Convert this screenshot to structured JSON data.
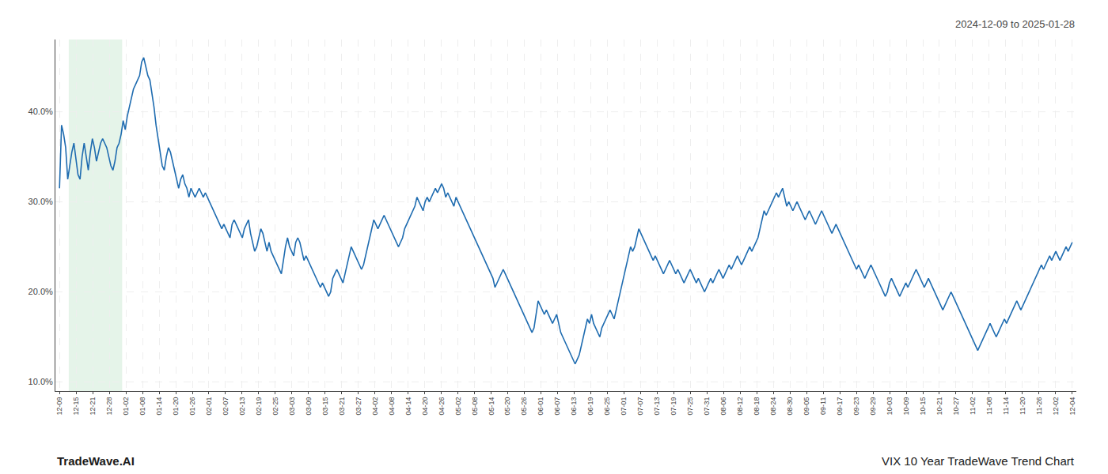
{
  "chart_data": {
    "type": "line",
    "title": "VIX 10 Year TradeWave Trend Chart",
    "subtitle": "2024-12-09 to 2025-01-28",
    "annotations": [
      "TradeWave.AI"
    ],
    "color": "#1f6cb0",
    "grid": true,
    "highlight": {
      "start": 4.5,
      "end": 30.5,
      "color": "#d4edda"
    },
    "xlim": [
      -2,
      495
    ],
    "xticks": [
      {
        "value": 0,
        "label": "12-09"
      },
      {
        "value": 8.082,
        "label": "12-15"
      },
      {
        "value": 16.1639,
        "label": "12-21"
      },
      {
        "value": 24.2459,
        "label": "12-28"
      },
      {
        "value": 32.3279,
        "label": "01-02"
      },
      {
        "value": 40.4098,
        "label": "01-08"
      },
      {
        "value": 48.4918,
        "label": "01-14"
      },
      {
        "value": 56.5738,
        "label": "01-20"
      },
      {
        "value": 64.6557,
        "label": "01-26"
      },
      {
        "value": 72.7377,
        "label": "02-01"
      },
      {
        "value": 80.8197,
        "label": "02-07"
      },
      {
        "value": 88.9016,
        "label": "02-13"
      },
      {
        "value": 96.9836,
        "label": "02-19"
      },
      {
        "value": 105.0656,
        "label": "02-25"
      },
      {
        "value": 113.1475,
        "label": "03-03"
      },
      {
        "value": 121.2295,
        "label": "03-09"
      },
      {
        "value": 129.3115,
        "label": "03-15"
      },
      {
        "value": 137.3934,
        "label": "03-21"
      },
      {
        "value": 145.4754,
        "label": "03-27"
      },
      {
        "value": 153.5574,
        "label": "04-02"
      },
      {
        "value": 161.6393,
        "label": "04-08"
      },
      {
        "value": 169.7213,
        "label": "04-14"
      },
      {
        "value": 177.8033,
        "label": "04-20"
      },
      {
        "value": 185.8852,
        "label": "04-26"
      },
      {
        "value": 193.9672,
        "label": "05-02"
      },
      {
        "value": 202.0492,
        "label": "05-08"
      },
      {
        "value": 210.1311,
        "label": "05-14"
      },
      {
        "value": 218.2131,
        "label": "05-20"
      },
      {
        "value": 226.2951,
        "label": "05-26"
      },
      {
        "value": 234.377,
        "label": "06-01"
      },
      {
        "value": 242.459,
        "label": "06-07"
      },
      {
        "value": 250.541,
        "label": "06-13"
      },
      {
        "value": 258.623,
        "label": "06-19"
      },
      {
        "value": 266.7049,
        "label": "06-25"
      },
      {
        "value": 274.7869,
        "label": "07-01"
      },
      {
        "value": 282.8689,
        "label": "07-07"
      },
      {
        "value": 290.9508,
        "label": "07-13"
      },
      {
        "value": 299.0328,
        "label": "07-19"
      },
      {
        "value": 307.1148,
        "label": "07-25"
      },
      {
        "value": 315.1967,
        "label": "07-31"
      },
      {
        "value": 323.2787,
        "label": "08-06"
      },
      {
        "value": 331.3607,
        "label": "08-12"
      },
      {
        "value": 339.4426,
        "label": "08-18"
      },
      {
        "value": 347.5246,
        "label": "08-24"
      },
      {
        "value": 355.6066,
        "label": "08-30"
      },
      {
        "value": 363.6885,
        "label": "09-05"
      },
      {
        "value": 371.7705,
        "label": "09-11"
      },
      {
        "value": 379.8525,
        "label": "09-17"
      },
      {
        "value": 387.9344,
        "label": "09-23"
      },
      {
        "value": 396.0164,
        "label": "09-29"
      },
      {
        "value": 404.0984,
        "label": "10-03"
      },
      {
        "value": 412.1803,
        "label": "10-09"
      },
      {
        "value": 420.2623,
        "label": "10-15"
      },
      {
        "value": 428.3443,
        "label": "10-21"
      },
      {
        "value": 436.4262,
        "label": "10-27"
      },
      {
        "value": 444.5082,
        "label": "11-02"
      },
      {
        "value": 452.5902,
        "label": "11-08"
      },
      {
        "value": 460.6721,
        "label": "11-14"
      },
      {
        "value": 468.7541,
        "label": "11-20"
      },
      {
        "value": 476.8361,
        "label": "11-26"
      },
      {
        "value": 484.918,
        "label": "12-02"
      },
      {
        "value": 493,
        "label": "12-04"
      }
    ],
    "ylim": [
      9.0,
      48.0
    ],
    "yticks": [
      {
        "value": 10.0,
        "label": "10.0%"
      },
      {
        "value": 20.0,
        "label": "20.0%"
      },
      {
        "value": 30.0,
        "label": "30.0%"
      },
      {
        "value": 40.0,
        "label": "40.0%"
      }
    ],
    "values": [
      31.5,
      38.5,
      37.5,
      36.0,
      32.5,
      34.0,
      35.5,
      36.5,
      34.5,
      33.0,
      32.5,
      35.0,
      36.5,
      35.0,
      33.5,
      35.5,
      37.0,
      36.0,
      34.5,
      35.5,
      36.5,
      37.0,
      36.5,
      36.0,
      35.0,
      34.0,
      33.5,
      34.5,
      36.0,
      36.5,
      37.5,
      39.0,
      38.0,
      39.5,
      40.5,
      41.5,
      42.5,
      43.0,
      43.5,
      44.0,
      45.5,
      46.0,
      45.0,
      44.0,
      43.5,
      42.0,
      40.5,
      38.5,
      37.0,
      35.5,
      34.0,
      33.5,
      35.0,
      36.0,
      35.5,
      34.5,
      33.5,
      32.5,
      31.5,
      32.5,
      33.0,
      32.0,
      31.5,
      30.5,
      31.5,
      31.0,
      30.5,
      31.0,
      31.5,
      31.0,
      30.5,
      31.0,
      30.5,
      30.0,
      29.5,
      29.0,
      28.5,
      28.0,
      27.5,
      27.0,
      27.5,
      27.0,
      26.5,
      26.0,
      27.5,
      28.0,
      27.5,
      27.0,
      26.5,
      26.0,
      27.0,
      27.5,
      28.0,
      26.5,
      25.5,
      24.5,
      25.0,
      26.0,
      27.0,
      26.5,
      25.5,
      24.5,
      25.5,
      24.5,
      24.0,
      23.5,
      23.0,
      22.5,
      22.0,
      23.5,
      25.0,
      26.0,
      25.0,
      24.5,
      24.0,
      25.5,
      26.0,
      25.5,
      24.5,
      23.5,
      24.0,
      23.5,
      23.0,
      22.5,
      22.0,
      21.5,
      21.0,
      20.5,
      21.0,
      20.5,
      20.0,
      19.5,
      20.0,
      21.5,
      22.0,
      22.5,
      22.0,
      21.5,
      21.0,
      22.0,
      23.0,
      24.0,
      25.0,
      24.5,
      24.0,
      23.5,
      23.0,
      22.5,
      23.0,
      24.0,
      25.0,
      26.0,
      27.0,
      28.0,
      27.5,
      27.0,
      27.5,
      28.0,
      28.5,
      28.0,
      27.5,
      27.0,
      26.5,
      26.0,
      25.5,
      25.0,
      25.5,
      26.0,
      27.0,
      27.5,
      28.0,
      28.5,
      29.0,
      29.5,
      30.5,
      30.0,
      29.5,
      29.0,
      30.0,
      30.5,
      30.0,
      30.5,
      31.0,
      31.5,
      31.0,
      31.5,
      32.0,
      31.5,
      30.5,
      31.0,
      30.5,
      30.0,
      29.5,
      30.5,
      30.0,
      29.5,
      29.0,
      28.5,
      28.0,
      27.5,
      27.0,
      26.5,
      26.0,
      25.5,
      25.0,
      24.5,
      24.0,
      23.5,
      23.0,
      22.5,
      22.0,
      21.5,
      20.5,
      21.0,
      21.5,
      22.0,
      22.5,
      22.0,
      21.5,
      21.0,
      20.5,
      20.0,
      19.5,
      19.0,
      18.5,
      18.0,
      17.5,
      17.0,
      16.5,
      16.0,
      15.5,
      16.0,
      17.5,
      19.0,
      18.5,
      18.0,
      17.5,
      18.0,
      17.5,
      17.0,
      16.5,
      17.0,
      17.5,
      16.5,
      15.5,
      15.0,
      14.5,
      14.0,
      13.5,
      13.0,
      12.5,
      12.0,
      12.5,
      13.0,
      14.0,
      15.0,
      16.0,
      17.0,
      16.5,
      17.5,
      16.5,
      16.0,
      15.5,
      15.0,
      16.0,
      16.5,
      17.0,
      17.5,
      18.0,
      17.5,
      17.0,
      18.0,
      19.0,
      20.0,
      21.0,
      22.0,
      23.0,
      24.0,
      25.0,
      24.5,
      25.0,
      26.0,
      27.0,
      26.5,
      26.0,
      25.5,
      25.0,
      24.5,
      24.0,
      23.5,
      24.0,
      23.5,
      23.0,
      22.5,
      22.0,
      22.5,
      23.0,
      23.5,
      23.0,
      22.5,
      22.0,
      22.5,
      22.0,
      21.5,
      21.0,
      21.5,
      22.0,
      22.5,
      22.0,
      21.5,
      21.0,
      21.5,
      21.0,
      20.5,
      20.0,
      20.5,
      21.0,
      21.5,
      21.0,
      21.5,
      22.0,
      22.5,
      22.0,
      21.5,
      22.0,
      22.5,
      23.0,
      22.5,
      23.0,
      23.5,
      24.0,
      23.5,
      23.0,
      23.5,
      24.0,
      24.5,
      25.0,
      24.5,
      25.0,
      25.5,
      26.0,
      27.0,
      28.0,
      29.0,
      28.5,
      29.0,
      29.5,
      30.0,
      30.5,
      31.0,
      30.5,
      31.0,
      31.5,
      30.5,
      29.5,
      30.0,
      29.5,
      29.0,
      29.5,
      30.0,
      29.5,
      29.0,
      28.5,
      28.0,
      28.5,
      29.0,
      28.5,
      28.0,
      27.5,
      28.0,
      28.5,
      29.0,
      28.5,
      28.0,
      27.5,
      27.0,
      26.5,
      27.0,
      27.5,
      27.0,
      26.5,
      26.0,
      25.5,
      25.0,
      24.5,
      24.0,
      23.5,
      23.0,
      22.5,
      23.0,
      22.5,
      22.0,
      21.5,
      22.0,
      22.5,
      23.0,
      22.5,
      22.0,
      21.5,
      21.0,
      20.5,
      20.0,
      19.5,
      20.0,
      21.0,
      21.5,
      21.0,
      20.5,
      20.0,
      19.5,
      20.0,
      20.5,
      21.0,
      20.5,
      21.0,
      21.5,
      22.0,
      22.5,
      22.0,
      21.5,
      21.0,
      20.5,
      21.0,
      21.5,
      21.0,
      20.5,
      20.0,
      19.5,
      19.0,
      18.5,
      18.0,
      18.5,
      19.0,
      19.5,
      20.0,
      19.5,
      19.0,
      18.5,
      18.0,
      17.5,
      17.0,
      16.5,
      16.0,
      15.5,
      15.0,
      14.5,
      14.0,
      13.5,
      14.0,
      14.5,
      15.0,
      15.5,
      16.0,
      16.5,
      16.0,
      15.5,
      15.0,
      15.5,
      16.0,
      16.5,
      17.0,
      16.5,
      17.0,
      17.5,
      18.0,
      18.5,
      19.0,
      18.5,
      18.0,
      18.5,
      19.0,
      19.5,
      20.0,
      20.5,
      21.0,
      21.5,
      22.0,
      22.5,
      23.0,
      22.5,
      23.0,
      23.5,
      24.0,
      23.5,
      24.0,
      24.5,
      24.0,
      23.5,
      24.0,
      24.5,
      25.0,
      24.5,
      25.0,
      25.5
    ]
  }
}
